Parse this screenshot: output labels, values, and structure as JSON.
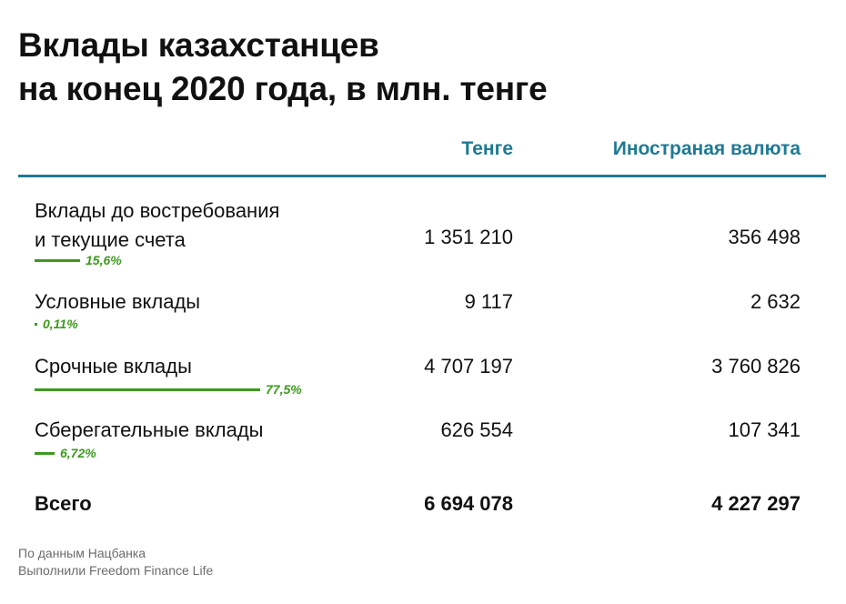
{
  "title": {
    "line1": "Вклады казахстанцев",
    "line2": "на конец 2020 года, в млн. тенге"
  },
  "columns": {
    "tenge": "Тенге",
    "fx": "Иностраная валюта"
  },
  "rows": [
    {
      "label_lines": [
        "Вклады до востребования",
        "и текущие счета"
      ],
      "tenge": "1 351 210",
      "fx": "356 498",
      "share_label": "15,6%",
      "share_pct": 15.6
    },
    {
      "label_lines": [
        "Условные вклады"
      ],
      "tenge": "9 117",
      "fx": "2 632",
      "share_label": "0,11%",
      "share_pct": 0.11
    },
    {
      "label_lines": [
        "Срочные вклады"
      ],
      "tenge": "4 707 197",
      "fx": "3 760 826",
      "share_label": "77,5%",
      "share_pct": 77.5
    },
    {
      "label_lines": [
        "Сберегательные вклады"
      ],
      "tenge": "626 554",
      "fx": "107 341",
      "share_label": "6,72%",
      "share_pct": 6.72
    }
  ],
  "total": {
    "label": "Всего",
    "tenge": "6 694 078",
    "fx": "4 227 297"
  },
  "footer": {
    "line1": "По данным Нацбанка",
    "line2": "Выполнили Freedom Finance Life"
  },
  "colors": {
    "accent": "#1e7a94",
    "share_bar": "#3d9a1e",
    "text": "#111111",
    "muted": "#6b6b6b"
  }
}
